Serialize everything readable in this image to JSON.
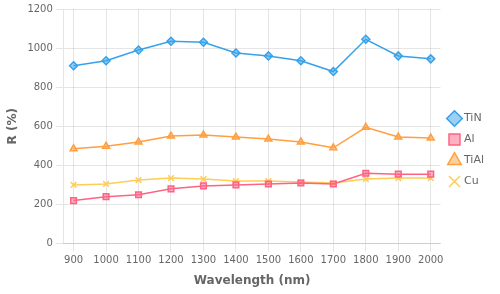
{
  "chart_data": {
    "type": "line",
    "x": [
      900,
      1000,
      1100,
      1200,
      1300,
      1400,
      1500,
      1600,
      1700,
      1800,
      1900,
      2000
    ],
    "series": [
      {
        "name": "TiN",
        "marker": "diamond",
        "values": [
          910,
          935,
          990,
          1035,
          1030,
          975,
          960,
          935,
          880,
          1045,
          960,
          945
        ]
      },
      {
        "name": "Al",
        "marker": "square",
        "values": [
          220,
          240,
          250,
          280,
          295,
          300,
          305,
          310,
          305,
          360,
          355,
          355
        ]
      },
      {
        "name": "TiAl",
        "marker": "triangle",
        "values": [
          485,
          498,
          520,
          550,
          555,
          545,
          535,
          520,
          490,
          595,
          545,
          540
        ]
      },
      {
        "name": "Cu",
        "marker": "x",
        "values": [
          300,
          305,
          325,
          335,
          330,
          320,
          320,
          315,
          310,
          330,
          335,
          335
        ]
      }
    ],
    "xlabel": "Wavelength (nm)",
    "ylabel": "R (%)",
    "xlim": [
      870,
      2030
    ],
    "ylim": [
      0,
      1200
    ],
    "xticks": [
      900,
      1000,
      1100,
      1200,
      1300,
      1400,
      1500,
      1600,
      1700,
      1800,
      1900,
      2000
    ],
    "yticks": [
      0,
      200,
      400,
      600,
      800,
      1000,
      1200
    ],
    "grid": true,
    "legend": "right"
  }
}
